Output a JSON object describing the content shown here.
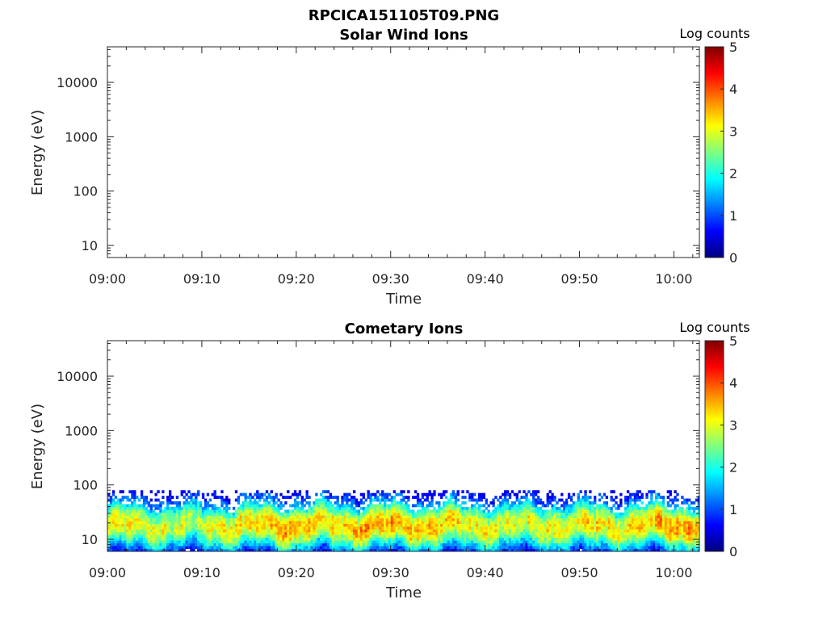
{
  "figure": {
    "title": "RPCICA151105T09.PNG"
  },
  "colors": {
    "axis": "#262626",
    "background": "#ffffff",
    "colormap": [
      "#00007f",
      "#0000ff",
      "#007fff",
      "#00ffff",
      "#7fff7f",
      "#ffff00",
      "#ff7f00",
      "#ff0000",
      "#7f0000"
    ]
  },
  "chart_data": [
    {
      "type": "heatmap",
      "title": "Solar Wind Ions",
      "xlabel": "Time",
      "ylabel": "Energy (eV)",
      "x_ticks": [
        "09:00",
        "09:10",
        "09:20",
        "09:30",
        "09:40",
        "09:50",
        "10:00"
      ],
      "x_range_minutes": [
        0,
        62.7
      ],
      "y_scale": "log",
      "y_ticks": [
        "10",
        "100",
        "1000",
        "10000"
      ],
      "y_range": [
        6,
        45000
      ],
      "colorbar": {
        "label": "Log counts",
        "ticks": [
          "0",
          "1",
          "2",
          "3",
          "4",
          "5"
        ],
        "range": [
          0,
          5
        ]
      },
      "data": "empty"
    },
    {
      "type": "heatmap",
      "title": "Cometary Ions",
      "xlabel": "Time",
      "ylabel": "Energy (eV)",
      "x_ticks": [
        "09:00",
        "09:10",
        "09:20",
        "09:30",
        "09:40",
        "09:50",
        "10:00"
      ],
      "x_range_minutes": [
        0,
        62.7
      ],
      "y_scale": "log",
      "y_ticks": [
        "10",
        "100",
        "1000",
        "10000"
      ],
      "y_range": [
        6,
        45000
      ],
      "colorbar": {
        "label": "Log counts",
        "ticks": [
          "0",
          "1",
          "2",
          "3",
          "4",
          "5"
        ],
        "range": [
          0,
          5
        ]
      },
      "signal_energy_range_eV": [
        6,
        80
      ],
      "peak_energy_eV": 18,
      "peak_log_counts": [
        3,
        3.8
      ],
      "time_profile": [
        {
          "t": 0,
          "peak": 3.0
        },
        {
          "t": 3,
          "peak": 3.1
        },
        {
          "t": 6,
          "peak": 3.0
        },
        {
          "t": 9,
          "peak": 2.8
        },
        {
          "t": 12,
          "peak": 3.1
        },
        {
          "t": 15,
          "peak": 3.3
        },
        {
          "t": 18,
          "peak": 3.6
        },
        {
          "t": 21,
          "peak": 3.4
        },
        {
          "t": 24,
          "peak": 3.3
        },
        {
          "t": 27,
          "peak": 3.6
        },
        {
          "t": 30,
          "peak": 3.5
        },
        {
          "t": 33,
          "peak": 3.5
        },
        {
          "t": 36,
          "peak": 3.3
        },
        {
          "t": 39,
          "peak": 3.1
        },
        {
          "t": 42,
          "peak": 3.0
        },
        {
          "t": 45,
          "peak": 3.0
        },
        {
          "t": 48,
          "peak": 3.1
        },
        {
          "t": 51,
          "peak": 3.2
        },
        {
          "t": 54,
          "peak": 3.2
        },
        {
          "t": 57,
          "peak": 3.4
        },
        {
          "t": 60,
          "peak": 3.7
        },
        {
          "t": 62.7,
          "peak": 3.5
        }
      ]
    }
  ]
}
